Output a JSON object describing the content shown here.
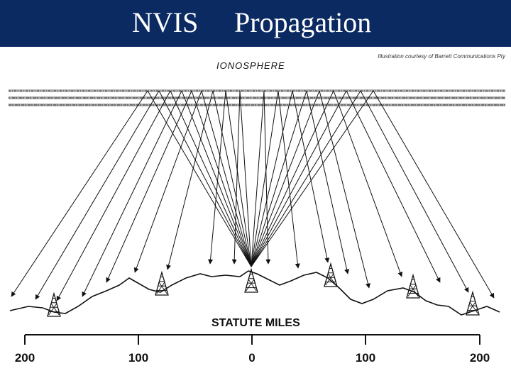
{
  "title": {
    "word1": "NVIS",
    "word2": "Propagation"
  },
  "credit": "Illustration courtesy of Barrett Communications Pty",
  "diagram": {
    "ionosphere_label": "IONOSPHERE",
    "scale_label": "STATUTE MILES",
    "scale_ticks": [
      "200",
      "100",
      "0",
      "100",
      "200"
    ]
  },
  "colors": {
    "title_bar": "#0b2a62",
    "title_text": "#ffffff",
    "ink": "#111111"
  }
}
